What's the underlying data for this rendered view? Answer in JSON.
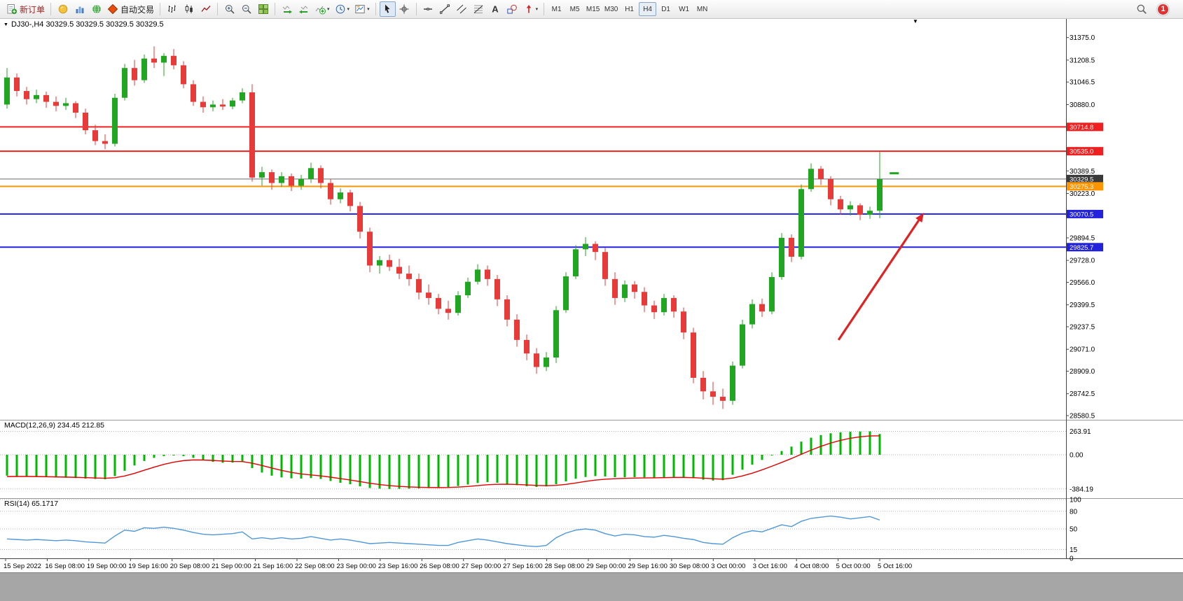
{
  "toolbar": {
    "buttons": [
      {
        "name": "new-order",
        "icon": "new-order-icon",
        "label": "新订单",
        "label_red": true
      },
      {
        "sep": true
      },
      {
        "name": "website",
        "icon": "lightbulb-icon"
      },
      {
        "name": "profile-charts",
        "icon": "charts-icon"
      },
      {
        "name": "community",
        "icon": "globe-icon"
      },
      {
        "name": "auto-trading",
        "icon": "auto-trading-icon",
        "label": "自动交易"
      },
      {
        "sep": true
      },
      {
        "name": "bar-chart-mode",
        "icon": "bar-chart-icon"
      },
      {
        "name": "candlestick-mode",
        "icon": "candlestick-icon"
      },
      {
        "name": "line-chart-mode",
        "icon": "line-chart-icon"
      },
      {
        "sep": true
      },
      {
        "name": "zoom-in",
        "icon": "zoom-in-icon"
      },
      {
        "name": "zoom-out",
        "icon": "zoom-out-icon"
      },
      {
        "name": "tile-windows",
        "icon": "tile-windows-icon"
      },
      {
        "sep": true
      },
      {
        "name": "auto-scroll",
        "icon": "auto-scroll-icon"
      },
      {
        "name": "chart-shift",
        "icon": "chart-shift-icon"
      },
      {
        "name": "indicators",
        "icon": "indicators-icon",
        "caret": true
      },
      {
        "name": "periods",
        "icon": "period-icon",
        "caret": true
      },
      {
        "name": "templates",
        "icon": "template-icon",
        "caret": true
      },
      {
        "sep": true
      },
      {
        "name": "cursor",
        "icon": "cursor-icon",
        "active": true
      },
      {
        "name": "crosshair",
        "icon": "crosshair-icon"
      },
      {
        "sep": true
      },
      {
        "name": "horizontal-line",
        "icon": "hline-icon"
      },
      {
        "name": "trendline",
        "icon": "trendline-icon"
      },
      {
        "name": "equidistant-channel",
        "icon": "channel-icon"
      },
      {
        "name": "fibonacci-retracement",
        "icon": "fibo-icon"
      },
      {
        "name": "text-label",
        "icon": "text-icon"
      },
      {
        "name": "shapes",
        "icon": "shapes-icon"
      },
      {
        "name": "arrow-objects",
        "icon": "arrows-icon",
        "caret": true
      },
      {
        "sep": true
      }
    ],
    "timeframes": [
      "M1",
      "M5",
      "M15",
      "M30",
      "H1",
      "H4",
      "D1",
      "W1",
      "MN"
    ],
    "active_timeframe": "H4",
    "notification_count": "1"
  },
  "chart": {
    "symbol_header": "DJ30-,H4 30329.5 30329.5 30329.5 30329.5",
    "macd_header": "MACD(12,26,9) 234.45 212.85",
    "rsi_header": "RSI(14) 65.1717",
    "collapse_triangle": "▼",
    "menu_triangle": "▼"
  },
  "chart_data": {
    "type": "candlestick",
    "symbol": "DJ30-",
    "period": "H4",
    "colors": {
      "up": "#21a621",
      "down": "#e93a3a",
      "macd_hist": "#00b800",
      "macd_signal": "#e00000",
      "rsi_line": "#4f97d7",
      "arrow": "#e02222",
      "orange_line": "#ff9500",
      "blue_line": "#2222dd",
      "red_line": "#f02020",
      "current_line": "#6a6a6a"
    },
    "price_axis": {
      "min": 28560,
      "max": 31420,
      "tick_labels": [
        "31375.0",
        "31208.5",
        "31046.5",
        "30880.0",
        "30389.5",
        "30223.0",
        "29894.5",
        "29728.0",
        "29566.0",
        "29399.5",
        "29237.5",
        "29071.0",
        "28909.0",
        "28742.5",
        "28580.5"
      ]
    },
    "hlines": [
      {
        "value": 30714.8,
        "label": "30714.8",
        "color": "#f02020",
        "width": 2
      },
      {
        "value": 30535.0,
        "label": "30535.0",
        "color": "#f02020",
        "width": 2
      },
      {
        "value": 30329.5,
        "label": "30329.5",
        "color": "#6a6a6a",
        "width": 1,
        "badge": "#3a3a3a",
        "role": "current-price"
      },
      {
        "value": 30275.3,
        "label": "30275.3",
        "color": "#ff9500",
        "width": 2
      },
      {
        "value": 30070.5,
        "label": "30070.5",
        "color": "#2222dd",
        "width": 2
      },
      {
        "value": 29825.7,
        "label": "29825.7",
        "color": "#2222dd",
        "width": 2
      }
    ],
    "candles": [
      [
        30880,
        31150,
        30850,
        31080
      ],
      [
        31080,
        31110,
        30940,
        30980
      ],
      [
        30980,
        31010,
        30880,
        30920
      ],
      [
        30920,
        30990,
        30890,
        30950
      ],
      [
        30950,
        30975,
        30855,
        30900
      ],
      [
        30900,
        30940,
        30830,
        30870
      ],
      [
        30870,
        30930,
        30840,
        30890
      ],
      [
        30890,
        30905,
        30780,
        30820
      ],
      [
        30820,
        30850,
        30660,
        30690
      ],
      [
        30690,
        30730,
        30580,
        30610
      ],
      [
        30610,
        30660,
        30550,
        30590
      ],
      [
        30590,
        30960,
        30570,
        30930
      ],
      [
        30930,
        31180,
        30910,
        31150
      ],
      [
        31150,
        31210,
        31020,
        31060
      ],
      [
        31060,
        31250,
        31040,
        31220
      ],
      [
        31220,
        31310,
        31150,
        31190
      ],
      [
        31190,
        31260,
        31090,
        31240
      ],
      [
        31240,
        31290,
        31140,
        31170
      ],
      [
        31170,
        31200,
        31000,
        31030
      ],
      [
        31030,
        31060,
        30870,
        30900
      ],
      [
        30900,
        30940,
        30820,
        30860
      ],
      [
        30860,
        30910,
        30830,
        30880
      ],
      [
        30880,
        30920,
        30840,
        30865
      ],
      [
        30865,
        30930,
        30845,
        30910
      ],
      [
        30910,
        31000,
        30890,
        30970
      ],
      [
        30970,
        31030,
        30310,
        30340
      ],
      [
        30340,
        30420,
        30280,
        30380
      ],
      [
        30380,
        30400,
        30250,
        30300
      ],
      [
        30300,
        30380,
        30270,
        30350
      ],
      [
        30350,
        30370,
        30240,
        30280
      ],
      [
        30280,
        30360,
        30250,
        30330
      ],
      [
        30330,
        30450,
        30300,
        30410
      ],
      [
        30410,
        30430,
        30260,
        30300
      ],
      [
        30300,
        30330,
        30140,
        30180
      ],
      [
        30180,
        30260,
        30150,
        30230
      ],
      [
        30230,
        30250,
        30090,
        30130
      ],
      [
        30130,
        30160,
        29890,
        29940
      ],
      [
        29940,
        29970,
        29640,
        29690
      ],
      [
        29690,
        29760,
        29630,
        29730
      ],
      [
        29730,
        29770,
        29650,
        29680
      ],
      [
        29680,
        29740,
        29590,
        29630
      ],
      [
        29630,
        29690,
        29540,
        29590
      ],
      [
        29590,
        29630,
        29440,
        29490
      ],
      [
        29490,
        29550,
        29400,
        29450
      ],
      [
        29450,
        29480,
        29330,
        29370
      ],
      [
        29370,
        29430,
        29290,
        29340
      ],
      [
        29340,
        29500,
        29320,
        29470
      ],
      [
        29470,
        29600,
        29450,
        29570
      ],
      [
        29570,
        29700,
        29550,
        29660
      ],
      [
        29660,
        29690,
        29540,
        29590
      ],
      [
        29590,
        29620,
        29390,
        29440
      ],
      [
        29440,
        29470,
        29240,
        29290
      ],
      [
        29290,
        29330,
        29090,
        29140
      ],
      [
        29140,
        29180,
        28990,
        29040
      ],
      [
        29040,
        29080,
        28890,
        28940
      ],
      [
        28940,
        29050,
        28910,
        29010
      ],
      [
        29010,
        29390,
        28970,
        29360
      ],
      [
        29360,
        29640,
        29340,
        29610
      ],
      [
        29610,
        29840,
        29590,
        29810
      ],
      [
        29810,
        29900,
        29760,
        29850
      ],
      [
        29850,
        29870,
        29730,
        29790
      ],
      [
        29790,
        29820,
        29540,
        29590
      ],
      [
        29590,
        29640,
        29400,
        29450
      ],
      [
        29450,
        29580,
        29420,
        29550
      ],
      [
        29550,
        29575,
        29445,
        29495
      ],
      [
        29495,
        29530,
        29345,
        29395
      ],
      [
        29395,
        29430,
        29295,
        29345
      ],
      [
        29345,
        29480,
        29320,
        29450
      ],
      [
        29450,
        29470,
        29305,
        29350
      ],
      [
        29350,
        29380,
        29145,
        29195
      ],
      [
        29195,
        29230,
        28820,
        28860
      ],
      [
        28860,
        28910,
        28700,
        28760
      ],
      [
        28760,
        28830,
        28660,
        28720
      ],
      [
        28720,
        28780,
        28630,
        28690
      ],
      [
        28690,
        28980,
        28660,
        28950
      ],
      [
        28950,
        29290,
        28930,
        29255
      ],
      [
        29255,
        29440,
        29225,
        29405
      ],
      [
        29405,
        29445,
        29310,
        29350
      ],
      [
        29350,
        29640,
        29330,
        29605
      ],
      [
        29605,
        29930,
        29585,
        29895
      ],
      [
        29895,
        29920,
        29715,
        29755
      ],
      [
        29755,
        30290,
        29735,
        30255
      ],
      [
        30255,
        30445,
        30235,
        30405
      ],
      [
        30405,
        30425,
        30285,
        30330
      ],
      [
        30330,
        30350,
        30135,
        30180
      ],
      [
        30180,
        30205,
        30065,
        30105
      ],
      [
        30105,
        30165,
        30060,
        30135
      ],
      [
        30135,
        30150,
        30025,
        30065
      ],
      [
        30065,
        30125,
        30035,
        30095
      ],
      [
        30095,
        30530,
        30040,
        30329.5
      ]
    ],
    "last_bar_marker": {
      "bar": 90.3,
      "price": 30372
    },
    "arrow": {
      "from": {
        "bar": 84.8,
        "price": 29140
      },
      "to": {
        "bar": 93.5,
        "price": 30080
      }
    },
    "x_labels": [
      "15 Sep 2022",
      "16 Sep 08:00",
      "19 Sep 00:00",
      "19 Sep 16:00",
      "20 Sep 08:00",
      "21 Sep 00:00",
      "21 Sep 16:00",
      "22 Sep 08:00",
      "23 Sep 00:00",
      "23 Sep 16:00",
      "26 Sep 08:00",
      "27 Sep 00:00",
      "27 Sep 16:00",
      "28 Sep 08:00",
      "29 Sep 00:00",
      "29 Sep 16:00",
      "30 Sep 08:00",
      "3 Oct 00:00",
      "3 Oct 16:00",
      "4 Oct 08:00",
      "5 Oct 00:00",
      "5 Oct 16:00"
    ],
    "macd": {
      "title": "MACD(12,26,9)",
      "value": "234.45",
      "signal_value": "212.85",
      "scale": [
        {
          "label": "263.91",
          "value": 263.91
        },
        {
          "label": "0.00",
          "value": 0
        },
        {
          "label": "-384.19",
          "value": -384.19
        }
      ],
      "histogram": [
        -235,
        -240,
        -245,
        -248,
        -252,
        -255,
        -258,
        -262,
        -268,
        -272,
        -275,
        -240,
        -180,
        -120,
        -70,
        -35,
        -15,
        -8,
        -15,
        -35,
        -60,
        -80,
        -90,
        -88,
        -80,
        -150,
        -200,
        -235,
        -255,
        -265,
        -268,
        -262,
        -272,
        -295,
        -315,
        -332,
        -355,
        -374,
        -381,
        -384.19,
        -383,
        -381,
        -379,
        -375,
        -371,
        -365,
        -352,
        -335,
        -318,
        -308,
        -315,
        -328,
        -342,
        -354,
        -362,
        -356,
        -332,
        -300,
        -270,
        -250,
        -240,
        -244,
        -252,
        -254,
        -252,
        -254,
        -256,
        -252,
        -250,
        -254,
        -264,
        -280,
        -290,
        -286,
        -225,
        -168,
        -112,
        -58,
        -8,
        42,
        92,
        148,
        192,
        222,
        242,
        253,
        259,
        262,
        263.91,
        234.45
      ],
      "signal": [
        -245,
        -244,
        -244,
        -245,
        -247,
        -249,
        -251,
        -254,
        -257,
        -261,
        -264,
        -258,
        -239,
        -209,
        -174,
        -139,
        -108,
        -83,
        -66,
        -58,
        -59,
        -64,
        -70,
        -75,
        -76,
        -95,
        -121,
        -149,
        -176,
        -198,
        -216,
        -227,
        -238,
        -252,
        -268,
        -284,
        -302,
        -320,
        -335,
        -347,
        -356,
        -362,
        -366,
        -368,
        -369,
        -368,
        -364,
        -357,
        -347,
        -337,
        -332,
        -331,
        -334,
        -339,
        -345,
        -348,
        -344,
        -333,
        -317,
        -300,
        -285,
        -275,
        -269,
        -265,
        -262,
        -260,
        -259,
        -257,
        -255,
        -255,
        -257,
        -263,
        -270,
        -274,
        -262,
        -238,
        -207,
        -170,
        -129,
        -86,
        -42,
        6,
        52,
        95,
        132,
        162,
        186,
        202,
        212,
        212.85
      ]
    },
    "rsi": {
      "title": "RSI(14)",
      "value": "65.1717",
      "levels": [
        {
          "label": "100",
          "value": 100
        },
        {
          "label": "80",
          "value": 80
        },
        {
          "label": "50",
          "value": 50
        },
        {
          "label": "15",
          "value": 15
        },
        {
          "label": "0",
          "value": 0
        }
      ],
      "values": [
        33,
        32,
        31,
        32,
        31,
        30,
        31,
        30,
        28,
        27,
        26,
        38,
        48,
        46,
        52,
        51,
        53,
        51,
        48,
        44,
        41,
        40,
        41,
        42,
        45,
        33,
        35,
        33,
        35,
        33,
        34,
        37,
        34,
        31,
        33,
        31,
        28,
        25,
        26,
        27,
        26,
        25,
        24,
        23,
        22,
        22,
        27,
        30,
        33,
        31,
        28,
        25,
        23,
        21,
        20,
        22,
        35,
        43,
        48,
        50,
        48,
        42,
        38,
        41,
        40,
        37,
        36,
        39,
        37,
        34,
        32,
        27,
        25,
        24,
        35,
        43,
        47,
        45,
        51,
        57,
        54,
        63,
        68,
        70,
        72,
        70,
        67,
        69,
        71,
        65.17
      ]
    }
  }
}
